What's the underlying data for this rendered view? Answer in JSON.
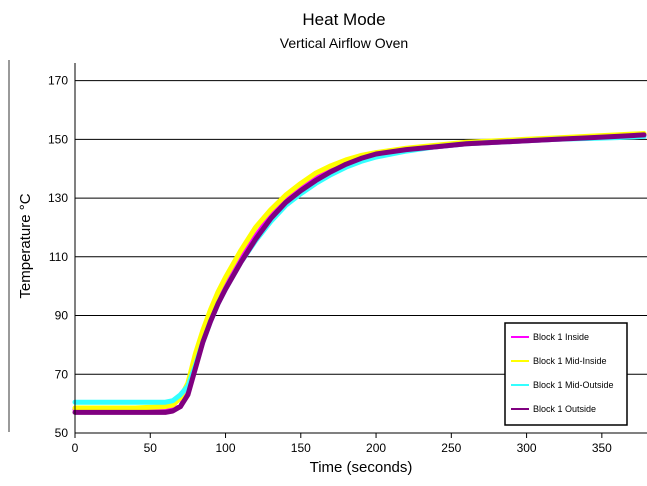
{
  "chart_data": {
    "type": "line",
    "title": "Heat Mode",
    "subtitle": "Vertical Airflow Oven",
    "xlabel": "Time (seconds)",
    "ylabel": "Temperature °C",
    "xlim": [
      0,
      380
    ],
    "ylim": [
      50,
      176
    ],
    "xticks": [
      0,
      50,
      100,
      150,
      200,
      250,
      300,
      350
    ],
    "yticks": [
      50,
      70,
      90,
      110,
      130,
      150,
      170
    ],
    "grid": "horizontal",
    "legend": "lower-right",
    "series": [
      {
        "name": "Block 1 Inside",
        "color": "#ff00ff",
        "x": [
          0,
          20,
          40,
          60,
          65,
          70,
          75,
          80,
          85,
          90,
          95,
          100,
          110,
          120,
          130,
          140,
          150,
          160,
          170,
          180,
          190,
          200,
          220,
          240,
          260,
          280,
          300,
          320,
          340,
          360,
          378
        ],
        "values": [
          58,
          58,
          58,
          58,
          58,
          59,
          64,
          74,
          82,
          89,
          95,
          100,
          109,
          117,
          124,
          129,
          133,
          137,
          140,
          142,
          144,
          145,
          146.5,
          147.5,
          148.5,
          149,
          149.5,
          150,
          150.5,
          150.8,
          151
        ]
      },
      {
        "name": "Block 1 Mid-Inside",
        "color": "#ffff00",
        "x": [
          0,
          20,
          40,
          60,
          65,
          70,
          75,
          80,
          85,
          90,
          95,
          100,
          110,
          120,
          130,
          140,
          150,
          160,
          170,
          180,
          190,
          200,
          220,
          240,
          260,
          280,
          300,
          320,
          340,
          360,
          378
        ],
        "values": [
          58.5,
          58.5,
          58.5,
          59,
          59.5,
          62,
          67,
          77,
          85,
          92,
          98,
          103,
          112,
          120,
          126,
          131,
          135,
          138.5,
          141,
          143,
          144.5,
          145.5,
          147,
          148,
          149,
          149.5,
          150,
          150.5,
          151,
          151.5,
          152
        ]
      },
      {
        "name": "Block 1 Mid-Outside",
        "color": "#33ffff",
        "x": [
          0,
          20,
          40,
          60,
          65,
          70,
          75,
          80,
          85,
          90,
          95,
          100,
          110,
          120,
          130,
          140,
          150,
          160,
          170,
          180,
          190,
          200,
          220,
          240,
          260,
          280,
          300,
          320,
          340,
          360,
          378
        ],
        "values": [
          60.5,
          60.5,
          60.5,
          60.5,
          61,
          63,
          66,
          73,
          81,
          88,
          94,
          99,
          108,
          115.5,
          122,
          127.5,
          131.5,
          135,
          138,
          140.5,
          142.5,
          144,
          146,
          147.5,
          148.5,
          149,
          149.5,
          150,
          150.3,
          150.6,
          151
        ]
      },
      {
        "name": "Block 1 Outside",
        "color": "#800080",
        "x": [
          0,
          20,
          40,
          60,
          65,
          70,
          75,
          80,
          85,
          90,
          95,
          100,
          110,
          120,
          130,
          140,
          150,
          160,
          170,
          180,
          190,
          200,
          220,
          240,
          260,
          280,
          300,
          320,
          340,
          360,
          378
        ],
        "values": [
          57,
          57,
          57,
          57,
          57.5,
          59,
          63,
          72,
          81,
          88,
          94,
          99,
          108,
          116,
          123,
          128.5,
          132.5,
          136,
          139,
          141.5,
          143.5,
          145,
          146.5,
          147.5,
          148.5,
          149,
          149.5,
          150,
          150.5,
          151,
          151.5
        ]
      }
    ]
  }
}
